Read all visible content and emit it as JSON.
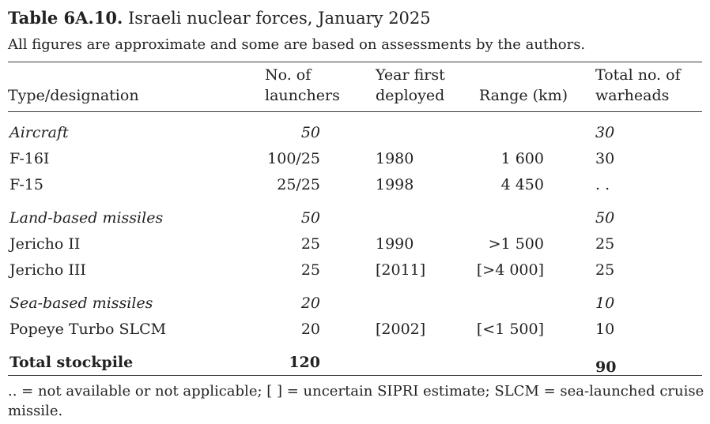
{
  "title": {
    "bold": "Table 6A.10.",
    "text": " Israeli nuclear forces, January 2025"
  },
  "subtitle": "All figures are approximate and some are based on assessments by the authors.",
  "table": {
    "headers": {
      "type": "Type/designation",
      "launchers_l1": "No. of",
      "launchers_l2": "launchers",
      "year_l1": "Year first",
      "year_l2": "deployed",
      "range": "Range (km)",
      "warheads_l1": "Total no. of",
      "warheads_l2": "warheads"
    },
    "rows": [
      {
        "type": "Aircraft",
        "launchers": "50",
        "year": "",
        "range": "",
        "warheads": "30"
      },
      {
        "type": "F-16I",
        "launchers": "100/25",
        "year": "1980",
        "range": "1 600",
        "warheads": "30"
      },
      {
        "type": "F-15",
        "launchers": "25/25",
        "year": "1998",
        "range": "4 450",
        "warheads": ". ."
      },
      {
        "type": "Land-based missiles",
        "launchers": "50",
        "year": "",
        "range": "",
        "warheads": "50"
      },
      {
        "type": "Jericho II",
        "launchers": "25",
        "year": "1990",
        "range": ">1 500",
        "warheads": "25"
      },
      {
        "type": "Jericho III",
        "launchers": "25",
        "year": "[2011]",
        "range": "[>4 000]",
        "warheads": "25"
      },
      {
        "type": "Sea-based missiles",
        "launchers": "20",
        "year": "",
        "range": "",
        "warheads": "10"
      },
      {
        "type": "Popeye Turbo SLCM",
        "launchers": "20",
        "year": "[2002]",
        "range": "[<1 500]",
        "warheads": "10"
      },
      {
        "type": "Total stockpile",
        "launchers": "120",
        "year": "",
        "range": "",
        "warheads": "90"
      }
    ]
  },
  "footnote": {
    "line1": ".. = not available or not applicable; [ ] = uncertain SIPRI estimate; SLCM = sea-launched cruise",
    "line2": "missile."
  }
}
